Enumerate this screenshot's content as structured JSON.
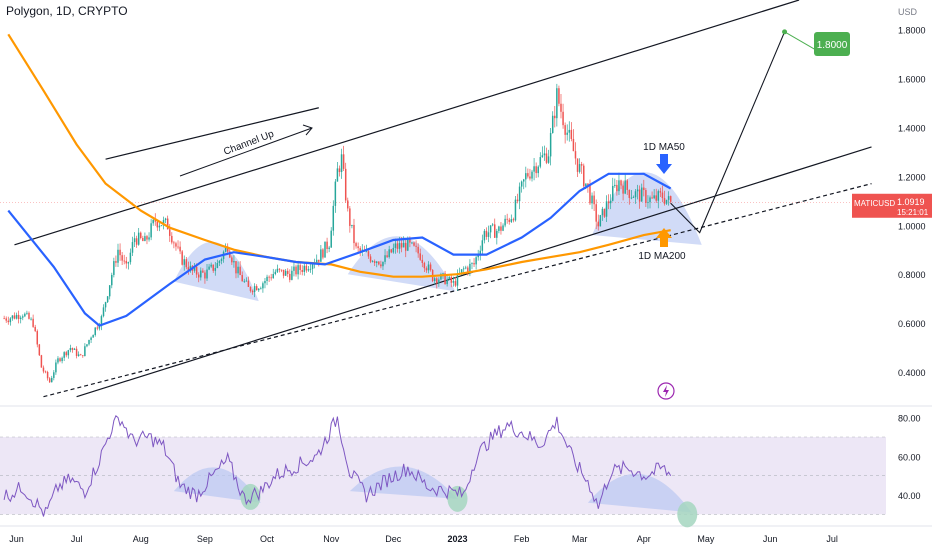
{
  "header": {
    "title": "Polygon, 1D, CRYPTO"
  },
  "chart_data": {
    "type": "candlestick",
    "symbol": "MATICUSD",
    "currency_label": "USD",
    "price_axis": {
      "range": [
        0.27,
        1.92
      ],
      "ticks": [
        "0.4000",
        "0.6000",
        "0.8000",
        "1.0000",
        "1.2000",
        "1.4000",
        "1.6000",
        "1.8000"
      ]
    },
    "time_axis": {
      "labels": [
        "Jun",
        "Jul",
        "Aug",
        "Sep",
        "Oct",
        "Nov",
        "Dec",
        "2023",
        "Feb",
        "Mar",
        "Apr",
        "May",
        "Jun",
        "Jul"
      ]
    },
    "last_price": {
      "value": "1.0919",
      "countdown": "15:21:01",
      "symbol": "MATICUSD"
    },
    "target": {
      "value": 1.8,
      "label": "1.8000"
    },
    "annotations": {
      "channel": "Channel Up",
      "ma50": "1D MA50",
      "ma200": "1D MA200"
    },
    "price_path": [
      [
        "2022-05-29",
        0.62
      ],
      [
        "2022-06-05",
        0.64
      ],
      [
        "2022-06-10",
        0.6
      ],
      [
        "2022-06-14",
        0.42
      ],
      [
        "2022-06-18",
        0.36
      ],
      [
        "2022-06-22",
        0.45
      ],
      [
        "2022-06-28",
        0.5
      ],
      [
        "2022-07-03",
        0.46
      ],
      [
        "2022-07-08",
        0.55
      ],
      [
        "2022-07-13",
        0.62
      ],
      [
        "2022-07-18",
        0.8
      ],
      [
        "2022-07-21",
        0.9
      ],
      [
        "2022-07-25",
        0.82
      ],
      [
        "2022-07-29",
        0.95
      ],
      [
        "2022-08-03",
        0.93
      ],
      [
        "2022-08-08",
        1.02
      ],
      [
        "2022-08-14",
        1.0
      ],
      [
        "2022-08-20",
        0.87
      ],
      [
        "2022-08-26",
        0.81
      ],
      [
        "2022-09-01",
        0.8
      ],
      [
        "2022-09-07",
        0.84
      ],
      [
        "2022-09-12",
        0.92
      ],
      [
        "2022-09-16",
        0.82
      ],
      [
        "2022-09-22",
        0.74
      ],
      [
        "2022-09-28",
        0.76
      ],
      [
        "2022-10-05",
        0.81
      ],
      [
        "2022-10-12",
        0.8
      ],
      [
        "2022-10-19",
        0.83
      ],
      [
        "2022-10-26",
        0.87
      ],
      [
        "2022-10-31",
        0.93
      ],
      [
        "2022-11-04",
        1.22
      ],
      [
        "2022-11-06",
        1.27
      ],
      [
        "2022-11-09",
        1.05
      ],
      [
        "2022-11-13",
        0.9
      ],
      [
        "2022-11-20",
        0.87
      ],
      [
        "2022-11-26",
        0.85
      ],
      [
        "2022-12-02",
        0.91
      ],
      [
        "2022-12-08",
        0.92
      ],
      [
        "2022-12-14",
        0.88
      ],
      [
        "2022-12-20",
        0.79
      ],
      [
        "2022-12-26",
        0.78
      ],
      [
        "2022-12-30",
        0.76
      ],
      [
        "2023-01-04",
        0.82
      ],
      [
        "2023-01-09",
        0.84
      ],
      [
        "2023-01-14",
        0.97
      ],
      [
        "2023-01-21",
        0.98
      ],
      [
        "2023-01-28",
        1.05
      ],
      [
        "2023-02-03",
        1.2
      ],
      [
        "2023-02-08",
        1.25
      ],
      [
        "2023-02-14",
        1.3
      ],
      [
        "2023-02-18",
        1.53
      ],
      [
        "2023-02-23",
        1.38
      ],
      [
        "2023-02-28",
        1.25
      ],
      [
        "2023-03-05",
        1.15
      ],
      [
        "2023-03-10",
        1.0
      ],
      [
        "2023-03-15",
        1.1
      ],
      [
        "2023-03-20",
        1.18
      ],
      [
        "2023-03-26",
        1.13
      ],
      [
        "2023-04-01",
        1.12
      ],
      [
        "2023-04-05",
        1.1
      ],
      [
        "2023-04-10",
        1.12
      ],
      [
        "2023-04-14",
        1.09
      ]
    ],
    "ma50": [
      [
        "2022-05-29",
        1.06
      ],
      [
        "2022-06-20",
        0.83
      ],
      [
        "2022-07-05",
        0.64
      ],
      [
        "2022-07-12",
        0.59
      ],
      [
        "2022-07-25",
        0.63
      ],
      [
        "2022-08-15",
        0.76
      ],
      [
        "2022-09-01",
        0.86
      ],
      [
        "2022-09-15",
        0.89
      ],
      [
        "2022-10-01",
        0.87
      ],
      [
        "2022-10-15",
        0.85
      ],
      [
        "2022-10-29",
        0.84
      ],
      [
        "2022-11-15",
        0.89
      ],
      [
        "2022-12-01",
        0.94
      ],
      [
        "2022-12-15",
        0.95
      ],
      [
        "2022-12-30",
        0.88
      ],
      [
        "2023-01-15",
        0.88
      ],
      [
        "2023-02-01",
        0.95
      ],
      [
        "2023-02-15",
        1.03
      ],
      [
        "2023-03-01",
        1.14
      ],
      [
        "2023-03-15",
        1.21
      ],
      [
        "2023-04-01",
        1.21
      ],
      [
        "2023-04-14",
        1.15
      ]
    ],
    "ma200": [
      [
        "2022-05-29",
        1.78
      ],
      [
        "2022-06-15",
        1.55
      ],
      [
        "2022-07-01",
        1.33
      ],
      [
        "2022-07-15",
        1.17
      ],
      [
        "2022-08-01",
        1.06
      ],
      [
        "2022-08-15",
        0.99
      ],
      [
        "2022-09-01",
        0.94
      ],
      [
        "2022-09-15",
        0.9
      ],
      [
        "2022-10-01",
        0.87
      ],
      [
        "2022-10-15",
        0.85
      ],
      [
        "2022-11-01",
        0.84
      ],
      [
        "2022-11-15",
        0.81
      ],
      [
        "2022-12-01",
        0.79
      ],
      [
        "2022-12-15",
        0.79
      ],
      [
        "2023-01-01",
        0.8
      ],
      [
        "2023-01-15",
        0.82
      ],
      [
        "2023-02-01",
        0.85
      ],
      [
        "2023-02-15",
        0.87
      ],
      [
        "2023-03-01",
        0.89
      ],
      [
        "2023-03-15",
        0.92
      ],
      [
        "2023-04-01",
        0.96
      ],
      [
        "2023-04-14",
        0.98
      ]
    ],
    "projection_path": [
      [
        "2023-04-14",
        1.09
      ],
      [
        "2023-04-28",
        0.97
      ],
      [
        "2023-06-08",
        1.79
      ]
    ],
    "channel_lines": [
      {
        "name": "upper",
        "points": [
          [
            "2022-06-01",
            0.92
          ],
          [
            "2023-06-15",
            1.92
          ]
        ],
        "style": "solid"
      },
      {
        "name": "middle",
        "points": [
          [
            "2022-07-15",
            1.27
          ],
          [
            "2022-10-26",
            1.48
          ]
        ],
        "style": "solid"
      },
      {
        "name": "lower",
        "points": [
          [
            "2022-07-01",
            0.3
          ],
          [
            "2023-07-20",
            1.32
          ]
        ],
        "style": "solid"
      },
      {
        "name": "dashed",
        "points": [
          [
            "2022-06-15",
            0.3
          ],
          [
            "2023-07-20",
            1.17
          ]
        ],
        "style": "dashed"
      }
    ],
    "rsi": {
      "range": [
        25,
        85
      ],
      "ticks": [
        "40.00",
        "60.00",
        "80.00"
      ],
      "band": [
        30,
        70
      ],
      "path": [
        [
          "2022-05-29",
          40
        ],
        [
          "2022-06-05",
          44
        ],
        [
          "2022-06-12",
          35
        ],
        [
          "2022-06-16",
          30
        ],
        [
          "2022-06-22",
          44
        ],
        [
          "2022-06-28",
          48
        ],
        [
          "2022-07-05",
          42
        ],
        [
          "2022-07-12",
          58
        ],
        [
          "2022-07-18",
          75
        ],
        [
          "2022-07-22",
          80
        ],
        [
          "2022-07-28",
          68
        ],
        [
          "2022-08-05",
          70
        ],
        [
          "2022-08-12",
          65
        ],
        [
          "2022-08-20",
          45
        ],
        [
          "2022-08-28",
          40
        ],
        [
          "2022-09-05",
          50
        ],
        [
          "2022-09-12",
          58
        ],
        [
          "2022-09-20",
          38
        ],
        [
          "2022-09-28",
          42
        ],
        [
          "2022-10-05",
          50
        ],
        [
          "2022-10-15",
          55
        ],
        [
          "2022-10-25",
          60
        ],
        [
          "2022-11-04",
          80
        ],
        [
          "2022-11-10",
          52
        ],
        [
          "2022-11-18",
          40
        ],
        [
          "2022-11-28",
          48
        ],
        [
          "2022-12-08",
          54
        ],
        [
          "2022-12-18",
          44
        ],
        [
          "2022-12-28",
          42
        ],
        [
          "2023-01-04",
          40
        ],
        [
          "2023-01-10",
          60
        ],
        [
          "2023-01-18",
          70
        ],
        [
          "2023-01-25",
          76
        ],
        [
          "2023-02-02",
          72
        ],
        [
          "2023-02-10",
          66
        ],
        [
          "2023-02-18",
          78
        ],
        [
          "2023-02-26",
          58
        ],
        [
          "2023-03-06",
          45
        ],
        [
          "2023-03-10",
          34
        ],
        [
          "2023-03-16",
          52
        ],
        [
          "2023-03-24",
          54
        ],
        [
          "2023-04-02",
          50
        ],
        [
          "2023-04-10",
          54
        ],
        [
          "2023-04-14",
          50
        ]
      ]
    }
  },
  "colors": {
    "candle_up": "#26a69a",
    "candle_down": "#ef5350",
    "ma50": "#2962ff",
    "ma200": "#ff9800",
    "channel": "#131722",
    "arc_fill": "#b9c8f2",
    "rsi_line": "#7e57c2",
    "rsi_band": "#ede7f6",
    "target_badge": "#4caf50",
    "last_price_badge": "#ef5350",
    "arrow_down": "#2962ff",
    "arrow_up": "#ff9800",
    "rsi_circle": "#a5d6c0",
    "lightning": "#9c27b0"
  },
  "icons": {
    "lightning": "lightning-bolt-icon"
  }
}
